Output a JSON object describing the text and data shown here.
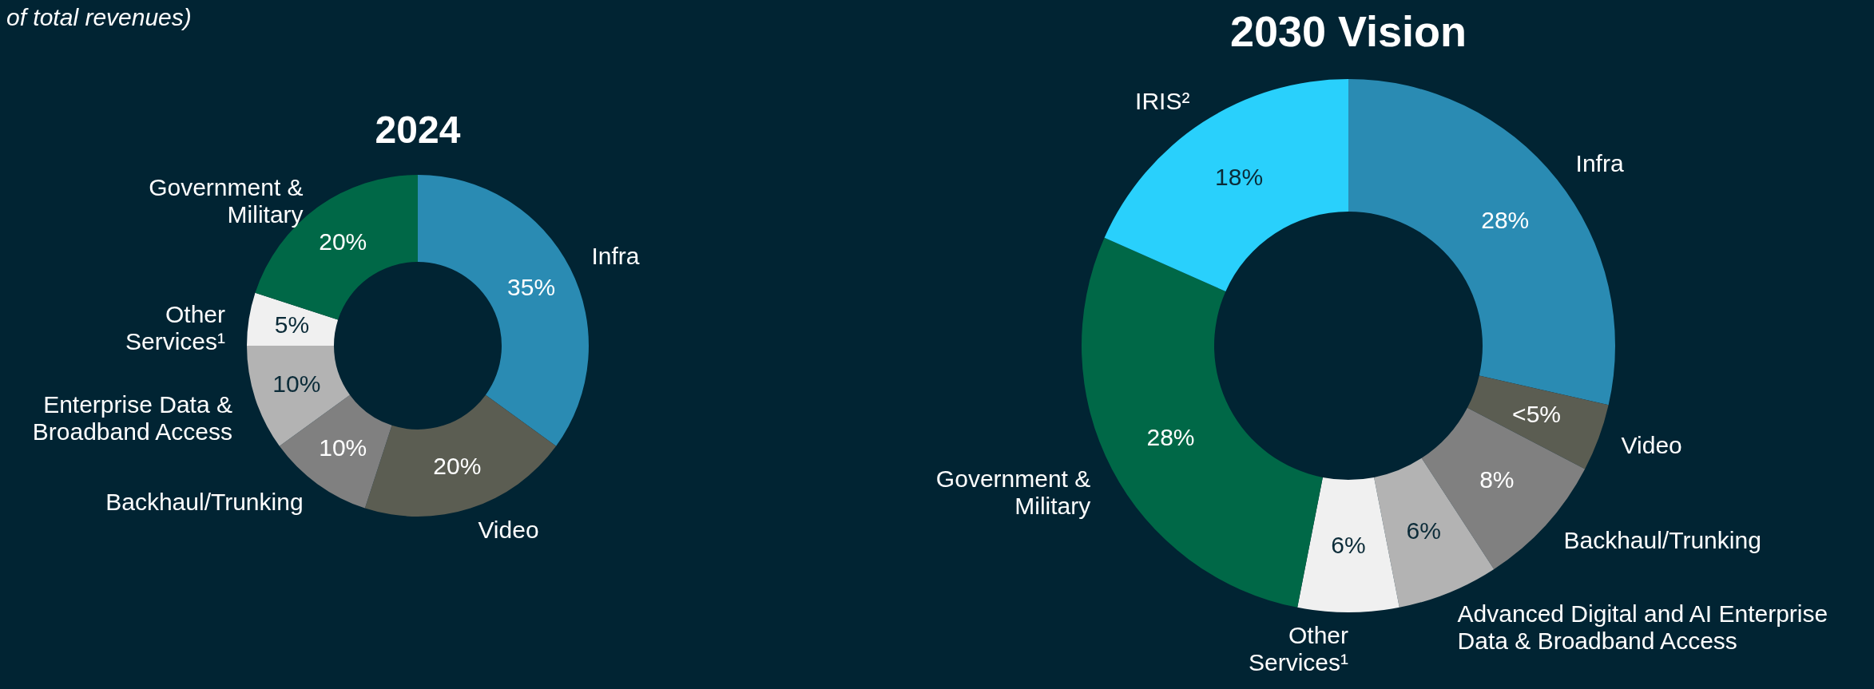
{
  "chart_data": [
    {
      "type": "donut",
      "title": "2024",
      "subtitle": "of total revenues)",
      "categories": [
        "Infra",
        "Video",
        "Backhaul/Trunking",
        "Enterprise Data &\nBroadband Access",
        "Other\nServices¹",
        "Government &\nMilitary"
      ],
      "values": [
        35,
        20,
        10,
        10,
        5,
        20
      ],
      "value_labels": [
        "35%",
        "20%",
        "10%",
        "10%",
        "5%",
        "20%"
      ],
      "colors": [
        "#2a8bb3",
        "#5b5d52",
        "#808080",
        "#b3b3b3",
        "#f0f0f0",
        "#006847"
      ]
    },
    {
      "type": "donut",
      "title": "2030 Vision",
      "categories": [
        "Infra",
        "Video",
        "Backhaul/Trunking",
        "Advanced Digital and AI Enterprise\nData & Broadband Access",
        "Other\nServices¹",
        "Government &\nMilitary",
        "IRIS²"
      ],
      "values": [
        28,
        4,
        8,
        6,
        6,
        28,
        18
      ],
      "value_labels": [
        "28%",
        "<5%",
        "8%",
        "6%",
        "6%",
        "28%",
        "18%"
      ],
      "colors": [
        "#2a8bb3",
        "#5b5d52",
        "#808080",
        "#b3b3b3",
        "#f0f0f0",
        "#006847",
        "#29d0fc"
      ]
    }
  ]
}
